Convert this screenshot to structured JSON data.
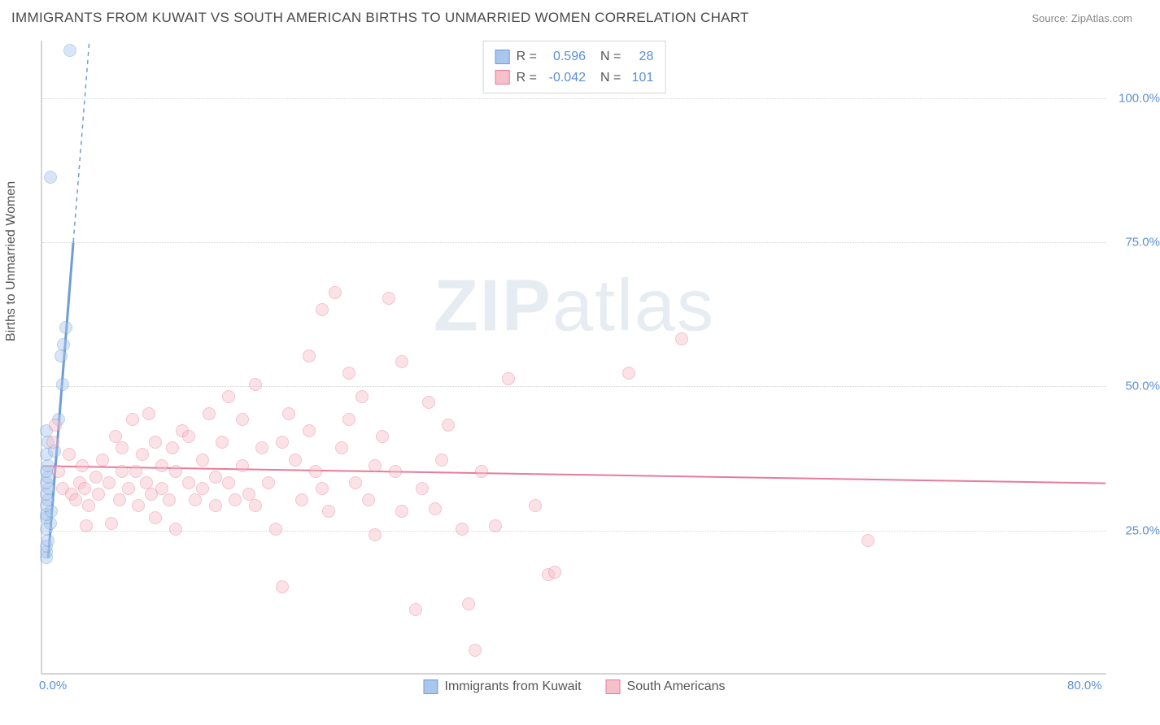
{
  "title": "IMMIGRANTS FROM KUWAIT VS SOUTH AMERICAN BIRTHS TO UNMARRIED WOMEN CORRELATION CHART",
  "source": "Source: ZipAtlas.com",
  "y_axis_label": "Births to Unmarried Women",
  "watermark": {
    "bold": "ZIP",
    "light": "atlas"
  },
  "chart": {
    "type": "scatter",
    "background_color": "#ffffff",
    "grid_color": "#d5d5d5",
    "axis_color": "#d5d5d5",
    "label_color": "#5b8fd6",
    "text_color": "#555555",
    "title_color": "#4a4a4a",
    "title_fontsize": 17,
    "label_fontsize": 16,
    "tick_fontsize": 15,
    "xlim": [
      0.0,
      80.0
    ],
    "ylim": [
      0.0,
      110.0
    ],
    "x_ticks": [
      {
        "value": 0.0,
        "label": "0.0%"
      },
      {
        "value": 80.0,
        "label": "80.0%"
      }
    ],
    "y_ticks": [
      {
        "value": 25.0,
        "label": "25.0%"
      },
      {
        "value": 50.0,
        "label": "50.0%"
      },
      {
        "value": 75.0,
        "label": "75.0%"
      },
      {
        "value": 100.0,
        "label": "100.0%"
      }
    ],
    "marker_radius": 8,
    "marker_opacity": 0.45,
    "line_width": 2,
    "series": [
      {
        "name": "Immigrants from Kuwait",
        "color_fill": "#a9c6ec",
        "color_stroke": "#6f9cd6",
        "r": 0.596,
        "n": 28,
        "trend": {
          "x1": 0.4,
          "y1": 20.0,
          "x2": 3.5,
          "y2": 110.0,
          "dashed_after_y": 75.0
        },
        "points": [
          {
            "x": 0.3,
            "y": 20.0
          },
          {
            "x": 0.3,
            "y": 21.0
          },
          {
            "x": 0.3,
            "y": 22.0
          },
          {
            "x": 0.4,
            "y": 23.0
          },
          {
            "x": 0.3,
            "y": 25.0
          },
          {
            "x": 0.6,
            "y": 26.0
          },
          {
            "x": 0.3,
            "y": 27.0
          },
          {
            "x": 0.3,
            "y": 27.5
          },
          {
            "x": 0.7,
            "y": 28.0
          },
          {
            "x": 0.3,
            "y": 29.0
          },
          {
            "x": 0.4,
            "y": 30.0
          },
          {
            "x": 0.3,
            "y": 31.0
          },
          {
            "x": 0.5,
            "y": 32.0
          },
          {
            "x": 0.3,
            "y": 33.0
          },
          {
            "x": 0.4,
            "y": 34.0
          },
          {
            "x": 0.3,
            "y": 35.0
          },
          {
            "x": 0.4,
            "y": 36.0
          },
          {
            "x": 0.3,
            "y": 38.0
          },
          {
            "x": 0.9,
            "y": 38.5
          },
          {
            "x": 0.4,
            "y": 40.0
          },
          {
            "x": 0.3,
            "y": 42.0
          },
          {
            "x": 1.2,
            "y": 44.0
          },
          {
            "x": 1.5,
            "y": 50.0
          },
          {
            "x": 1.4,
            "y": 55.0
          },
          {
            "x": 1.6,
            "y": 57.0
          },
          {
            "x": 1.8,
            "y": 60.0
          },
          {
            "x": 0.6,
            "y": 86.0
          },
          {
            "x": 2.1,
            "y": 108.0
          }
        ]
      },
      {
        "name": "South Americans",
        "color_fill": "#f6c0cb",
        "color_stroke": "#e97a9a",
        "r": -0.042,
        "n": 101,
        "trend": {
          "x1": 0.0,
          "y1": 36.0,
          "x2": 80.0,
          "y2": 33.0,
          "dashed_after_y": null
        },
        "points": [
          {
            "x": 0.8,
            "y": 40.0
          },
          {
            "x": 1.0,
            "y": 43.0
          },
          {
            "x": 1.2,
            "y": 35.0
          },
          {
            "x": 1.5,
            "y": 32.0
          },
          {
            "x": 2.0,
            "y": 38.0
          },
          {
            "x": 2.2,
            "y": 31.0
          },
          {
            "x": 2.5,
            "y": 30.0
          },
          {
            "x": 2.8,
            "y": 33.0
          },
          {
            "x": 3.0,
            "y": 36.0
          },
          {
            "x": 3.2,
            "y": 32.0
          },
          {
            "x": 3.3,
            "y": 25.5
          },
          {
            "x": 3.5,
            "y": 29.0
          },
          {
            "x": 4.0,
            "y": 34.0
          },
          {
            "x": 4.2,
            "y": 31.0
          },
          {
            "x": 4.5,
            "y": 37.0
          },
          {
            "x": 5.0,
            "y": 33.0
          },
          {
            "x": 5.2,
            "y": 26.0
          },
          {
            "x": 5.5,
            "y": 41.0
          },
          {
            "x": 5.8,
            "y": 30.0
          },
          {
            "x": 6.0,
            "y": 39.0
          },
          {
            "x": 6.0,
            "y": 35.0
          },
          {
            "x": 6.5,
            "y": 32.0
          },
          {
            "x": 6.8,
            "y": 44.0
          },
          {
            "x": 7.0,
            "y": 35.0
          },
          {
            "x": 7.2,
            "y": 29.0
          },
          {
            "x": 7.5,
            "y": 38.0
          },
          {
            "x": 7.8,
            "y": 33.0
          },
          {
            "x": 8.0,
            "y": 45.0
          },
          {
            "x": 8.2,
            "y": 31.0
          },
          {
            "x": 8.5,
            "y": 27.0
          },
          {
            "x": 8.5,
            "y": 40.0
          },
          {
            "x": 9.0,
            "y": 36.0
          },
          {
            "x": 9.0,
            "y": 32.0
          },
          {
            "x": 9.5,
            "y": 30.0
          },
          {
            "x": 9.8,
            "y": 39.0
          },
          {
            "x": 10.0,
            "y": 35.0
          },
          {
            "x": 10.0,
            "y": 25.0
          },
          {
            "x": 10.5,
            "y": 42.0
          },
          {
            "x": 11.0,
            "y": 41.0
          },
          {
            "x": 11.0,
            "y": 33.0
          },
          {
            "x": 11.5,
            "y": 30.0
          },
          {
            "x": 12.0,
            "y": 37.0
          },
          {
            "x": 12.0,
            "y": 32.0
          },
          {
            "x": 12.5,
            "y": 45.0
          },
          {
            "x": 13.0,
            "y": 34.0
          },
          {
            "x": 13.0,
            "y": 29.0
          },
          {
            "x": 13.5,
            "y": 40.0
          },
          {
            "x": 14.0,
            "y": 48.0
          },
          {
            "x": 14.0,
            "y": 33.0
          },
          {
            "x": 14.5,
            "y": 30.0
          },
          {
            "x": 15.0,
            "y": 44.0
          },
          {
            "x": 15.0,
            "y": 36.0
          },
          {
            "x": 15.5,
            "y": 31.0
          },
          {
            "x": 16.0,
            "y": 50.0
          },
          {
            "x": 16.0,
            "y": 29.0
          },
          {
            "x": 16.5,
            "y": 39.0
          },
          {
            "x": 17.0,
            "y": 33.0
          },
          {
            "x": 17.5,
            "y": 25.0
          },
          {
            "x": 18.0,
            "y": 40.0
          },
          {
            "x": 18.0,
            "y": 15.0
          },
          {
            "x": 18.5,
            "y": 45.0
          },
          {
            "x": 19.0,
            "y": 37.0
          },
          {
            "x": 19.5,
            "y": 30.0
          },
          {
            "x": 20.0,
            "y": 55.0
          },
          {
            "x": 20.0,
            "y": 42.0
          },
          {
            "x": 20.5,
            "y": 35.0
          },
          {
            "x": 21.0,
            "y": 63.0
          },
          {
            "x": 21.0,
            "y": 32.0
          },
          {
            "x": 21.5,
            "y": 28.0
          },
          {
            "x": 22.0,
            "y": 66.0
          },
          {
            "x": 22.5,
            "y": 39.0
          },
          {
            "x": 23.0,
            "y": 44.0
          },
          {
            "x": 23.0,
            "y": 52.0
          },
          {
            "x": 23.5,
            "y": 33.0
          },
          {
            "x": 24.0,
            "y": 48.0
          },
          {
            "x": 24.5,
            "y": 30.0
          },
          {
            "x": 25.0,
            "y": 36.0
          },
          {
            "x": 25.0,
            "y": 24.0
          },
          {
            "x": 25.5,
            "y": 41.0
          },
          {
            "x": 26.0,
            "y": 65.0
          },
          {
            "x": 26.5,
            "y": 35.0
          },
          {
            "x": 27.0,
            "y": 28.0
          },
          {
            "x": 27.0,
            "y": 54.0
          },
          {
            "x": 28.0,
            "y": 11.0
          },
          {
            "x": 28.5,
            "y": 32.0
          },
          {
            "x": 29.0,
            "y": 47.0
          },
          {
            "x": 29.5,
            "y": 28.5
          },
          {
            "x": 30.0,
            "y": 37.0
          },
          {
            "x": 30.5,
            "y": 43.0
          },
          {
            "x": 31.5,
            "y": 25.0
          },
          {
            "x": 32.0,
            "y": 12.0
          },
          {
            "x": 32.5,
            "y": 4.0
          },
          {
            "x": 33.0,
            "y": 35.0
          },
          {
            "x": 34.0,
            "y": 25.5
          },
          {
            "x": 35.0,
            "y": 51.0
          },
          {
            "x": 37.0,
            "y": 29.0
          },
          {
            "x": 38.0,
            "y": 17.0
          },
          {
            "x": 38.5,
            "y": 17.5
          },
          {
            "x": 44.0,
            "y": 52.0
          },
          {
            "x": 48.0,
            "y": 58.0
          },
          {
            "x": 62.0,
            "y": 23.0
          }
        ]
      }
    ]
  },
  "top_legend": {
    "r_label": "R =",
    "n_label": "N =",
    "rows": [
      {
        "series_index": 0
      },
      {
        "series_index": 1
      }
    ]
  },
  "bottom_legend": {
    "items": [
      {
        "series_index": 0
      },
      {
        "series_index": 1
      }
    ]
  }
}
